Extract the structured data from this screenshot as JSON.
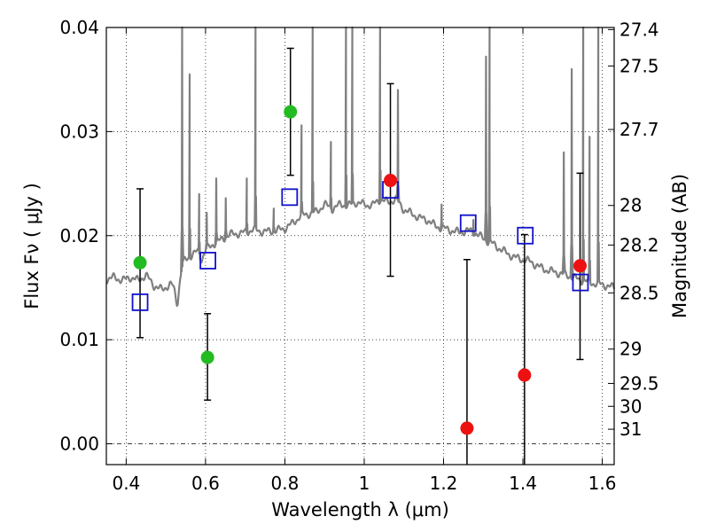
{
  "chart_data": {
    "type": "scatter",
    "xlabel": "Wavelength  λ (μm)",
    "ylabel": "Flux  Fν  ( μJy )",
    "ylabel_right": "Magnitude (AB)",
    "xlim": [
      0.35,
      1.63
    ],
    "ylim": [
      -0.002,
      0.04
    ],
    "x_ticks": [
      0.4,
      0.6,
      0.8,
      1.0,
      1.2,
      1.4,
      1.6
    ],
    "x_tick_labels": [
      "0.4",
      "0.6",
      "0.8",
      "1",
      "1.2",
      "1.4",
      "1.6"
    ],
    "y_ticks": [
      0.0,
      0.01,
      0.02,
      0.03,
      0.04
    ],
    "y_tick_labels": [
      "0.00",
      "0.01",
      "0.02",
      "0.03",
      "0.04"
    ],
    "right_ticks": [
      {
        "flux": 0.0398,
        "label": "27.4"
      },
      {
        "flux": 0.0363,
        "label": "27.5"
      },
      {
        "flux": 0.0302,
        "label": "27.7"
      },
      {
        "flux": 0.0229,
        "label": "28"
      },
      {
        "flux": 0.0191,
        "label": "28.2"
      },
      {
        "flux": 0.0145,
        "label": "28.5"
      },
      {
        "flux": 0.0091,
        "label": "29"
      },
      {
        "flux": 0.0058,
        "label": "29.5"
      },
      {
        "flux": 0.0036,
        "label": "30"
      },
      {
        "flux": 0.0014,
        "label": "31"
      }
    ],
    "grid": true,
    "zero_line": true,
    "series": [
      {
        "marker": "circle",
        "points": [
          {
            "x": 0.435,
            "y": 0.0174,
            "err_low": 0.0102,
            "err_high": 0.0245,
            "color": "#22bb22"
          },
          {
            "x": 0.605,
            "y": 0.0083,
            "err_low": 0.0042,
            "err_high": 0.0125,
            "color": "#22bb22"
          },
          {
            "x": 0.814,
            "y": 0.0319,
            "err_low": 0.0258,
            "err_high": 0.038,
            "color": "#22bb22"
          },
          {
            "x": 1.066,
            "y": 0.0253,
            "err_low": 0.0161,
            "err_high": 0.0346,
            "color": "#ee1111"
          },
          {
            "x": 1.259,
            "y": 0.0015,
            "err_low": -0.003,
            "err_high": 0.0177,
            "color": "#ee1111"
          },
          {
            "x": 1.404,
            "y": 0.0066,
            "err_low": -0.003,
            "err_high": 0.0201,
            "color": "#ee1111"
          },
          {
            "x": 1.544,
            "y": 0.0171,
            "err_low": 0.0081,
            "err_high": 0.026,
            "color": "#ee1111"
          }
        ]
      },
      {
        "marker": "square",
        "color": "#1111cc",
        "points": [
          {
            "x": 0.435,
            "y": 0.0136
          },
          {
            "x": 0.606,
            "y": 0.0176
          },
          {
            "x": 0.812,
            "y": 0.0237
          },
          {
            "x": 1.066,
            "y": 0.0244
          },
          {
            "x": 1.262,
            "y": 0.0212
          },
          {
            "x": 1.406,
            "y": 0.02
          },
          {
            "x": 1.545,
            "y": 0.0155
          }
        ]
      },
      {
        "type": "line",
        "color": "#808080",
        "continuum": [
          [
            0.35,
            0.0158
          ],
          [
            0.37,
            0.016
          ],
          [
            0.39,
            0.0157
          ],
          [
            0.41,
            0.016
          ],
          [
            0.43,
            0.0157
          ],
          [
            0.45,
            0.0162
          ],
          [
            0.47,
            0.0152
          ],
          [
            0.49,
            0.0148
          ],
          [
            0.51,
            0.0153
          ],
          [
            0.53,
            0.0151
          ],
          [
            0.545,
            0.0175
          ],
          [
            0.56,
            0.018
          ],
          [
            0.58,
            0.0185
          ],
          [
            0.6,
            0.0186
          ],
          [
            0.62,
            0.0192
          ],
          [
            0.64,
            0.0196
          ],
          [
            0.66,
            0.0201
          ],
          [
            0.68,
            0.0202
          ],
          [
            0.7,
            0.0203
          ],
          [
            0.72,
            0.0206
          ],
          [
            0.74,
            0.0204
          ],
          [
            0.76,
            0.0204
          ],
          [
            0.78,
            0.0205
          ],
          [
            0.8,
            0.0207
          ],
          [
            0.82,
            0.0212
          ],
          [
            0.84,
            0.0219
          ],
          [
            0.86,
            0.0221
          ],
          [
            0.88,
            0.0223
          ],
          [
            0.9,
            0.023
          ],
          [
            0.92,
            0.0226
          ],
          [
            0.94,
            0.023
          ],
          [
            0.96,
            0.0229
          ],
          [
            0.98,
            0.0232
          ],
          [
            1.0,
            0.023
          ],
          [
            1.02,
            0.0229
          ],
          [
            1.04,
            0.0235
          ],
          [
            1.06,
            0.0232
          ],
          [
            1.08,
            0.0235
          ],
          [
            1.1,
            0.0225
          ],
          [
            1.12,
            0.0221
          ],
          [
            1.14,
            0.0217
          ],
          [
            1.16,
            0.0215
          ],
          [
            1.18,
            0.0209
          ],
          [
            1.2,
            0.0207
          ],
          [
            1.22,
            0.0205
          ],
          [
            1.24,
            0.0203
          ],
          [
            1.26,
            0.0205
          ],
          [
            1.28,
            0.0203
          ],
          [
            1.3,
            0.0197
          ],
          [
            1.32,
            0.0193
          ],
          [
            1.34,
            0.0188
          ],
          [
            1.36,
            0.0183
          ],
          [
            1.38,
            0.0179
          ],
          [
            1.4,
            0.0177
          ],
          [
            1.42,
            0.0175
          ],
          [
            1.44,
            0.017
          ],
          [
            1.46,
            0.0167
          ],
          [
            1.48,
            0.0165
          ],
          [
            1.5,
            0.0163
          ],
          [
            1.52,
            0.0161
          ],
          [
            1.54,
            0.0158
          ],
          [
            1.56,
            0.0156
          ],
          [
            1.58,
            0.0154
          ],
          [
            1.6,
            0.0153
          ],
          [
            1.63,
            0.015
          ]
        ],
        "absorption": [
          {
            "x": 0.528,
            "depth": 0.0015
          },
          {
            "x": 0.59,
            "depth": 0.0008
          }
        ],
        "emission_lines": [
          {
            "x": 0.541,
            "peak": 0.042
          },
          {
            "x": 0.56,
            "peak": 0.0355
          },
          {
            "x": 0.584,
            "peak": 0.024
          },
          {
            "x": 0.603,
            "peak": 0.0222
          },
          {
            "x": 0.627,
            "peak": 0.0255
          },
          {
            "x": 0.651,
            "peak": 0.0236
          },
          {
            "x": 0.704,
            "peak": 0.0255
          },
          {
            "x": 0.726,
            "peak": 0.042
          },
          {
            "x": 0.772,
            "peak": 0.0226
          },
          {
            "x": 0.842,
            "peak": 0.0306
          },
          {
            "x": 0.87,
            "peak": 0.042
          },
          {
            "x": 0.916,
            "peak": 0.029
          },
          {
            "x": 0.954,
            "peak": 0.042
          },
          {
            "x": 0.97,
            "peak": 0.042
          },
          {
            "x": 1.04,
            "peak": 0.042
          },
          {
            "x": 1.085,
            "peak": 0.034
          },
          {
            "x": 1.195,
            "peak": 0.023
          },
          {
            "x": 1.275,
            "peak": 0.0215
          },
          {
            "x": 1.307,
            "peak": 0.0372
          },
          {
            "x": 1.316,
            "peak": 0.042
          },
          {
            "x": 1.503,
            "peak": 0.028
          },
          {
            "x": 1.523,
            "peak": 0.036
          },
          {
            "x": 1.552,
            "peak": 0.042
          },
          {
            "x": 1.568,
            "peak": 0.0295
          },
          {
            "x": 1.59,
            "peak": 0.042
          }
        ]
      }
    ]
  }
}
